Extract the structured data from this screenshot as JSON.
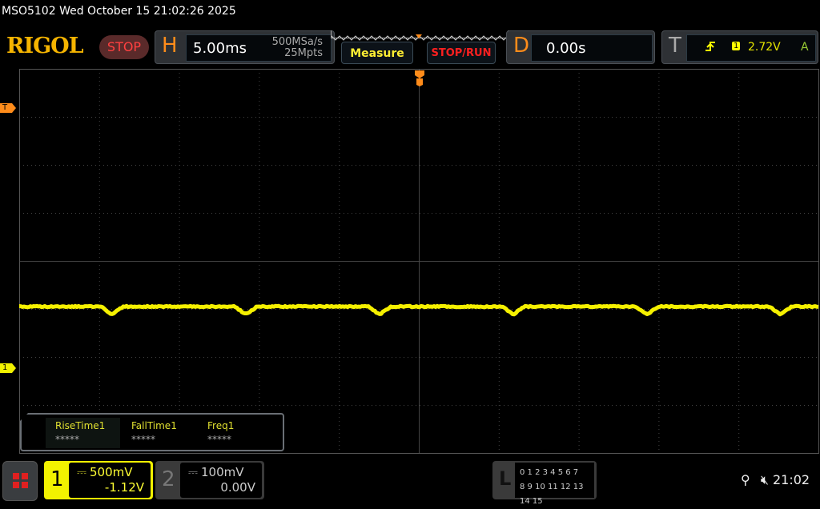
{
  "title_bar": "MSO5102  Wed October 15 21:02:26 2025",
  "logo": "RIGOL",
  "run_state": "STOP",
  "horizontal": {
    "label": "H",
    "timebase": "5.00ms",
    "sample_rate": "500MSa/s",
    "memory_depth": "25Mpts"
  },
  "buttons": {
    "measure": "Measure",
    "stop_run": "STOP/RUN"
  },
  "delay": {
    "label": "D",
    "value": "0.00s"
  },
  "trigger": {
    "label": "T",
    "source": "1",
    "level": "2.72V",
    "mode": "A",
    "slope_icon": "rising-edge-icon"
  },
  "markers": {
    "trigger_level": "T",
    "channel1": "1"
  },
  "measurements": [
    {
      "name": "RiseTime1",
      "value": "*****"
    },
    {
      "name": "FallTime1",
      "value": "*****"
    },
    {
      "name": "Freq1",
      "value": "*****"
    }
  ],
  "channel1": {
    "number": "1",
    "scale": "500mV",
    "offset": "-1.12V",
    "color": "#f2f200"
  },
  "channel2": {
    "number": "2",
    "scale": "100mV",
    "offset": "0.00V"
  },
  "logic": {
    "label": "L",
    "row1": "0 1 2 3  4 5 6 7",
    "row2": "8 9 10 11 12 13 14 15"
  },
  "status": {
    "time": "21:02",
    "icons": [
      "usb-icon",
      "speaker-muted-icon"
    ]
  },
  "colors": {
    "trace": "#f5f000",
    "accent": "#ff8c1a",
    "stop": "#ff4040"
  }
}
